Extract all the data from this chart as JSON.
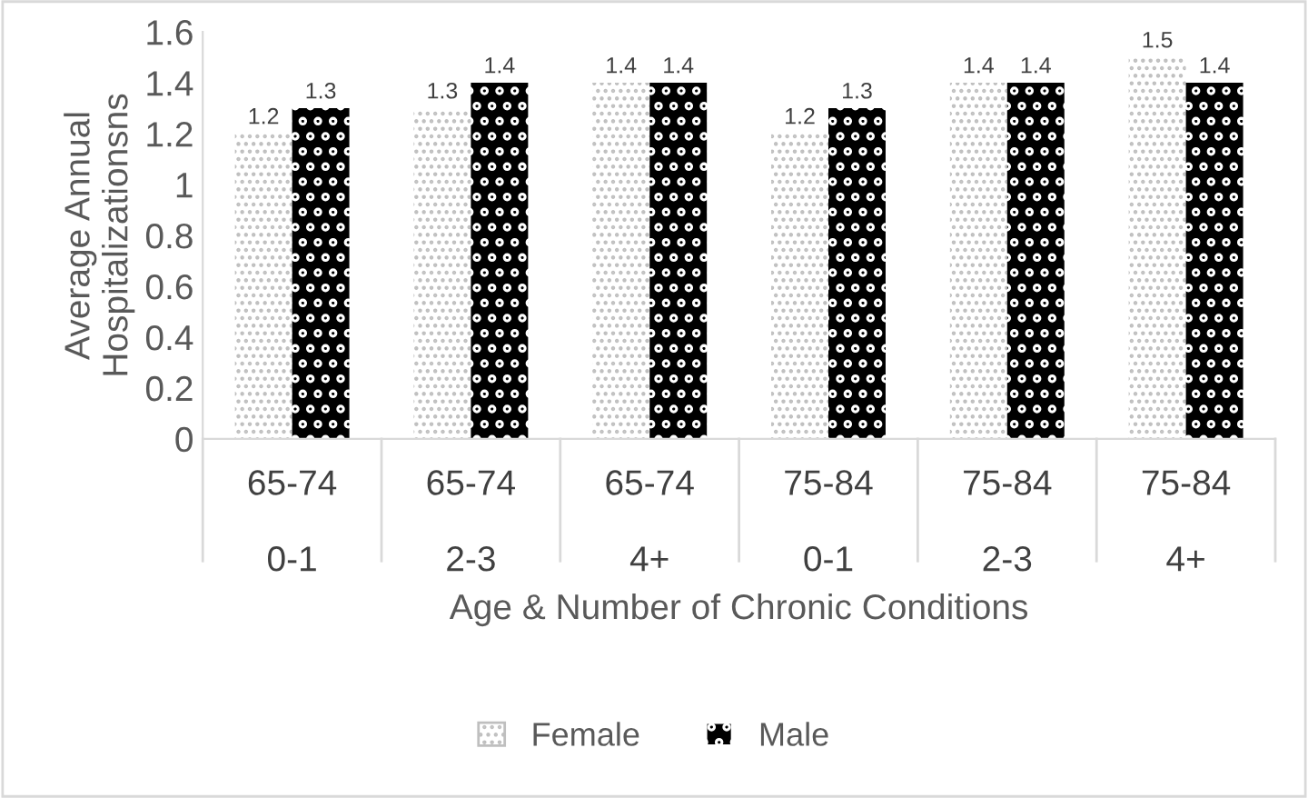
{
  "chart_data": {
    "type": "bar",
    "xlabel": "Age & Number of Chronic Conditions",
    "ylabel": "Average Annual\nHospitalizationsns",
    "categories": [
      "65-74\n\n0-1",
      "65-74\n\n2-3",
      "65-74\n\n4+",
      "75-84\n\n0-1",
      "75-84\n\n2-3",
      "75-84\n\n4+"
    ],
    "series": [
      {
        "name": "Female",
        "color": "#bfbfbf",
        "values": [
          1.2,
          1.3,
          1.4,
          1.2,
          1.4,
          1.5
        ]
      },
      {
        "name": "Male",
        "color": "#000000",
        "values": [
          1.3,
          1.4,
          1.4,
          1.3,
          1.4,
          1.4
        ]
      }
    ],
    "ylim": [
      0,
      1.6
    ],
    "yticks": [
      0,
      0.2,
      0.4,
      0.6,
      0.8,
      1,
      1.2,
      1.4,
      1.6
    ],
    "data_labels": true,
    "grid": false,
    "legend": "bottom"
  }
}
